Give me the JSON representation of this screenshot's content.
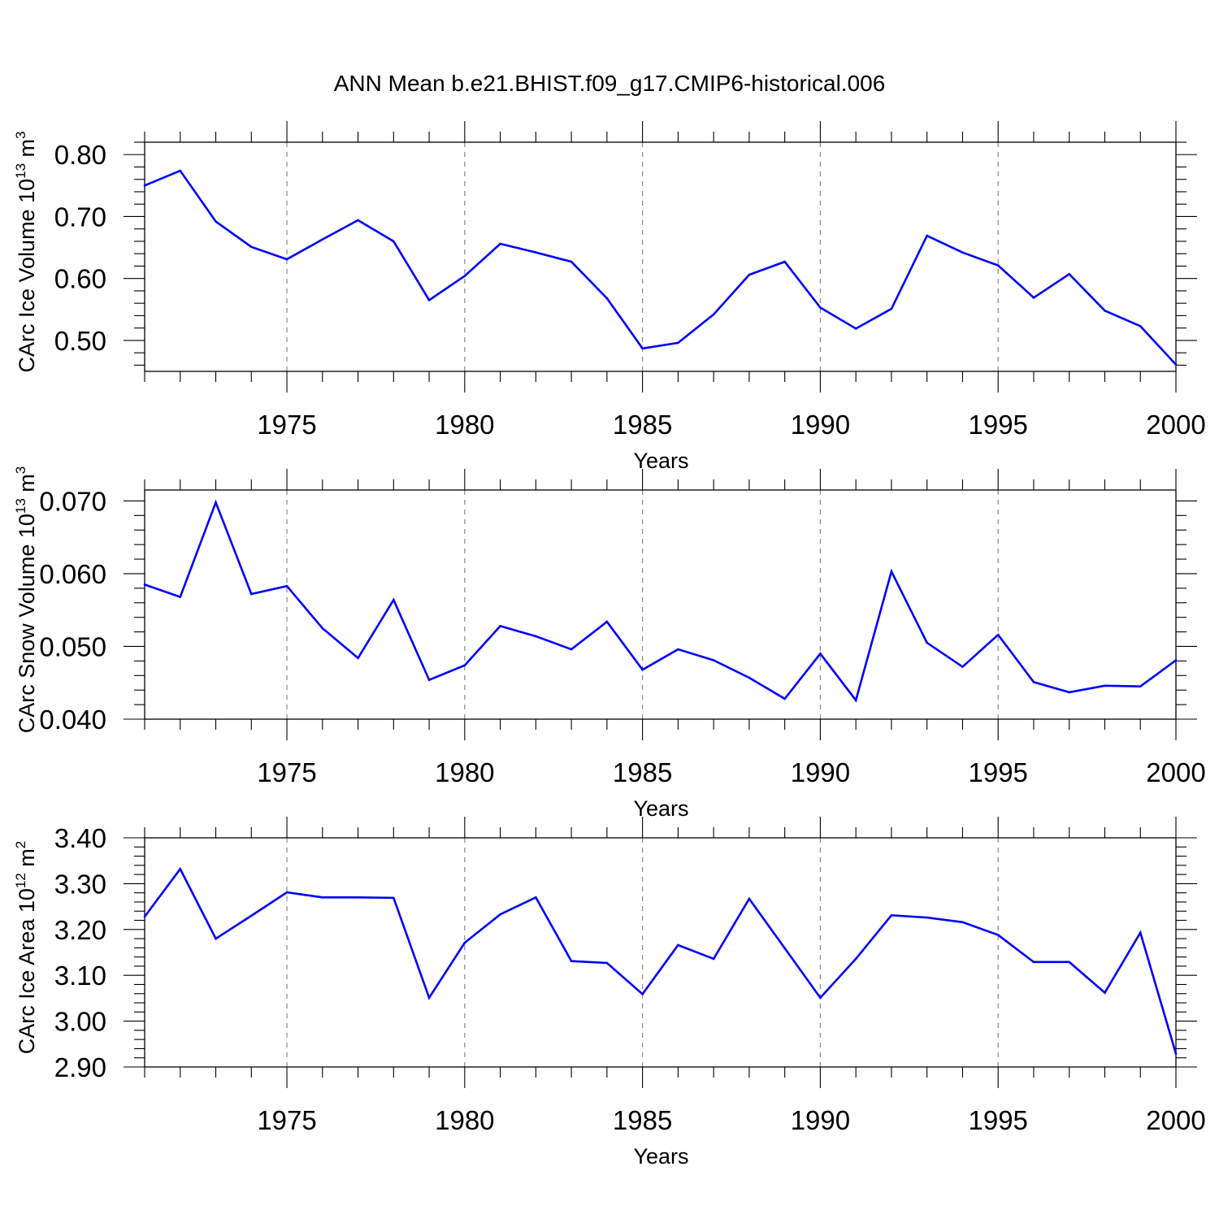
{
  "title": "ANN Mean b.e21.BHIST.f09_g17.CMIP6-historical.006",
  "series_color": "#0000ff",
  "chart_data": [
    {
      "type": "line",
      "ylabel_main": "CArc Ice Volume 10",
      "ylabel_exp": "13",
      "ylabel_unit": " m",
      "ylabel_unit_exp": "3",
      "xlabel": "Years",
      "xlim": [
        1971,
        2000
      ],
      "ylim": [
        0.45,
        0.82
      ],
      "yticks": [
        0.5,
        0.6,
        0.7,
        0.8
      ],
      "ytick_labels": [
        "0.50",
        "0.60",
        "0.70",
        "0.80"
      ],
      "xticks": [
        1975,
        1980,
        1985,
        1990,
        1995,
        2000
      ],
      "xtick_labels": [
        "1975",
        "1980",
        "1985",
        "1990",
        "1995",
        "2000"
      ],
      "grid": "vertical-dashed",
      "x": [
        1971,
        1972,
        1973,
        1974,
        1975,
        1976,
        1977,
        1978,
        1979,
        1980,
        1981,
        1982,
        1983,
        1984,
        1985,
        1986,
        1987,
        1988,
        1989,
        1990,
        1991,
        1992,
        1993,
        1994,
        1995,
        1996,
        1997,
        1998,
        1999,
        2000
      ],
      "y": [
        0.75,
        0.774,
        0.692,
        0.651,
        0.631,
        0.663,
        0.694,
        0.66,
        0.565,
        0.604,
        0.656,
        0.642,
        0.627,
        0.568,
        0.487,
        0.496,
        0.542,
        0.606,
        0.627,
        0.553,
        0.519,
        0.551,
        0.669,
        0.642,
        0.621,
        0.569,
        0.607,
        0.548,
        0.523,
        0.461
      ]
    },
    {
      "type": "line",
      "ylabel_main": "CArc Snow Volume 10",
      "ylabel_exp": "13",
      "ylabel_unit": " m",
      "ylabel_unit_exp": "3",
      "xlabel": "Years",
      "xlim": [
        1971,
        2000
      ],
      "ylim": [
        0.04,
        0.0715
      ],
      "yticks": [
        0.04,
        0.05,
        0.06,
        0.07
      ],
      "ytick_labels": [
        "0.040",
        "0.050",
        "0.060",
        "0.070"
      ],
      "xticks": [
        1975,
        1980,
        1985,
        1990,
        1995,
        2000
      ],
      "xtick_labels": [
        "1975",
        "1980",
        "1985",
        "1990",
        "1995",
        "2000"
      ],
      "grid": "vertical-dashed",
      "x": [
        1971,
        1972,
        1973,
        1974,
        1975,
        1976,
        1977,
        1978,
        1979,
        1980,
        1981,
        1982,
        1983,
        1984,
        1985,
        1986,
        1987,
        1988,
        1989,
        1990,
        1991,
        1992,
        1993,
        1994,
        1995,
        1996,
        1997,
        1998,
        1999,
        2000
      ],
      "y": [
        0.0585,
        0.0568,
        0.0698,
        0.0572,
        0.0583,
        0.0525,
        0.0484,
        0.0564,
        0.0454,
        0.0474,
        0.0528,
        0.0514,
        0.0496,
        0.0534,
        0.0468,
        0.0496,
        0.0481,
        0.0457,
        0.0428,
        0.049,
        0.0426,
        0.0603,
        0.0505,
        0.0472,
        0.0516,
        0.0451,
        0.0437,
        0.0446,
        0.0445,
        0.0481
      ]
    },
    {
      "type": "line",
      "ylabel_main": "CArc Ice Area 10",
      "ylabel_exp": "12",
      "ylabel_unit": " m",
      "ylabel_unit_exp": "2",
      "xlabel": "Years",
      "xlim": [
        1971,
        2000
      ],
      "ylim": [
        2.9,
        3.4
      ],
      "yticks": [
        2.9,
        3.0,
        3.1,
        3.2,
        3.3,
        3.4
      ],
      "ytick_labels": [
        "2.90",
        "3.00",
        "3.10",
        "3.20",
        "3.30",
        "3.40"
      ],
      "xticks": [
        1975,
        1980,
        1985,
        1990,
        1995,
        2000
      ],
      "xtick_labels": [
        "1975",
        "1980",
        "1985",
        "1990",
        "1995",
        "2000"
      ],
      "grid": "vertical-dashed",
      "x": [
        1971,
        1972,
        1973,
        1974,
        1975,
        1976,
        1977,
        1978,
        1979,
        1980,
        1981,
        1982,
        1983,
        1984,
        1985,
        1986,
        1987,
        1988,
        1989,
        1990,
        1991,
        1992,
        1993,
        1994,
        1995,
        1996,
        1997,
        1998,
        1999,
        2000
      ],
      "y": [
        3.228,
        3.332,
        3.18,
        3.23,
        3.281,
        3.27,
        3.27,
        3.269,
        3.051,
        3.171,
        3.233,
        3.27,
        3.131,
        3.127,
        3.059,
        3.166,
        3.136,
        3.267,
        3.159,
        3.051,
        3.136,
        3.231,
        3.226,
        3.216,
        3.188,
        3.129,
        3.129,
        3.062,
        3.193,
        2.929
      ]
    }
  ]
}
